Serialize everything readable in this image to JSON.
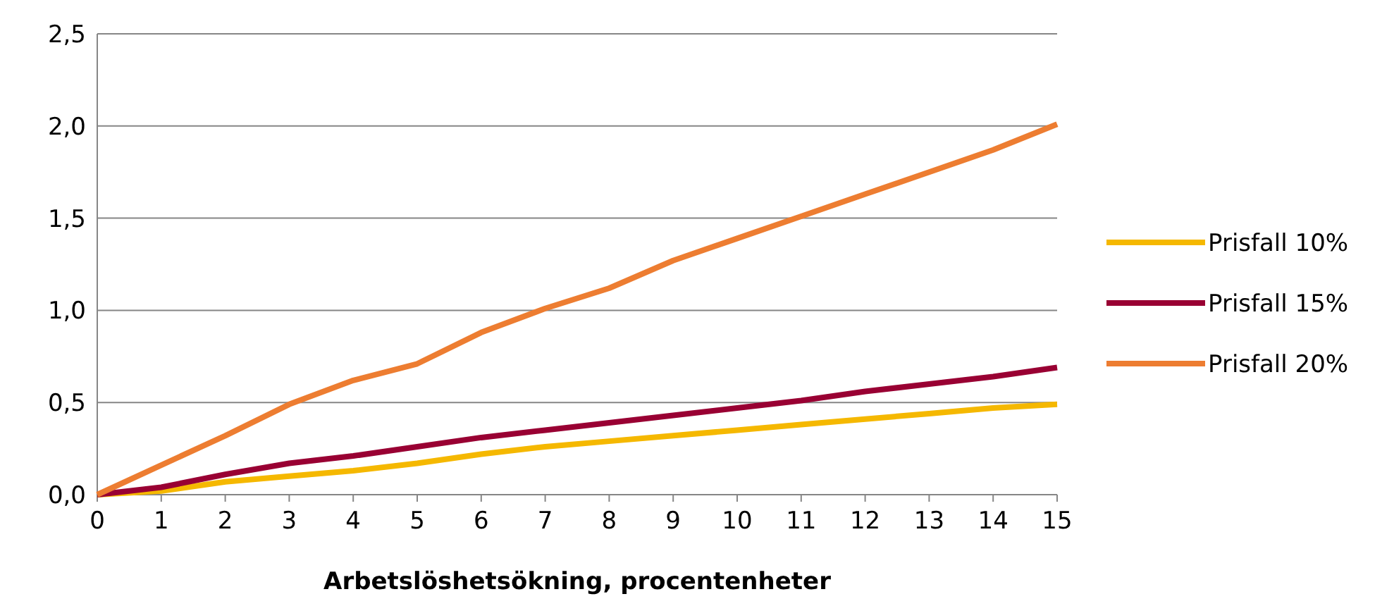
{
  "chart_data": {
    "type": "line",
    "xlabel": "Arbetslöshetsökning, procentenheter",
    "x": [
      0,
      1,
      2,
      3,
      4,
      5,
      6,
      7,
      8,
      9,
      10,
      11,
      12,
      13,
      14,
      15
    ],
    "xlim": [
      0,
      15
    ],
    "xticks": [
      0,
      1,
      2,
      3,
      4,
      5,
      6,
      7,
      8,
      9,
      10,
      11,
      12,
      13,
      14,
      15
    ],
    "ylim": [
      0,
      2.5
    ],
    "yticks": [
      {
        "value": 0,
        "label": "0,0"
      },
      {
        "value": 0.5,
        "label": "0,5"
      },
      {
        "value": 1,
        "label": "1,0"
      },
      {
        "value": 1.5,
        "label": "1,5"
      },
      {
        "value": 2,
        "label": "2,0"
      },
      {
        "value": 2.5,
        "label": "2,5"
      }
    ],
    "grid": "y",
    "legend": "right",
    "marker": "none",
    "line_style": "solid",
    "series": [
      {
        "name": "Prisfall 10%",
        "color": "#f5b800",
        "values": [
          0,
          0.02,
          0.07,
          0.1,
          0.13,
          0.17,
          0.22,
          0.26,
          0.29,
          0.32,
          0.35,
          0.38,
          0.41,
          0.44,
          0.47,
          0.49
        ]
      },
      {
        "name": "Prisfall 15%",
        "color": "#990033",
        "values": [
          0,
          0.04,
          0.11,
          0.17,
          0.21,
          0.26,
          0.31,
          0.35,
          0.39,
          0.43,
          0.47,
          0.51,
          0.56,
          0.6,
          0.64,
          0.69
        ]
      },
      {
        "name": "Prisfall 20%",
        "color": "#ed7d31",
        "values": [
          0,
          0.16,
          0.32,
          0.49,
          0.62,
          0.71,
          0.88,
          1.01,
          1.12,
          1.27,
          1.39,
          1.51,
          1.63,
          1.75,
          1.87,
          2.01
        ]
      }
    ]
  }
}
